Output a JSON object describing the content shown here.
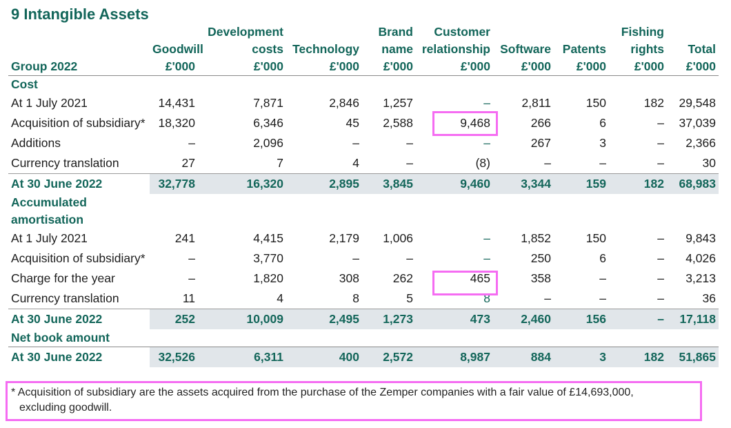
{
  "title": "9 Intangible Assets",
  "header": {
    "group": "Group 2022",
    "columns": [
      {
        "line1": "",
        "line2": "",
        "name": "Goodwill",
        "unit": "£'000"
      },
      {
        "line1": "Development",
        "line2": "",
        "name": "costs",
        "unit": "£'000"
      },
      {
        "line1": "",
        "line2": "",
        "name": "Technology",
        "unit": "£'000"
      },
      {
        "line1": "Brand",
        "line2": "",
        "name": "name",
        "unit": "£'000"
      },
      {
        "line1": "Customer",
        "line2": "",
        "name": "relationship",
        "unit": "£'000"
      },
      {
        "line1": "",
        "line2": "",
        "name": "Software",
        "unit": "£'000"
      },
      {
        "line1": "",
        "line2": "",
        "name": "Patents",
        "unit": "£'000"
      },
      {
        "line1": "Fishing",
        "line2": "",
        "name": "rights",
        "unit": "£'000"
      },
      {
        "line1": "",
        "line2": "",
        "name": "Total",
        "unit": "£'000"
      }
    ]
  },
  "sections": {
    "cost": "Cost",
    "amort_line1": "Accumulated",
    "amort_line2": "amortisation",
    "nba": "Net book amount"
  },
  "cost_rows": [
    {
      "label": "At 1 July 2021",
      "values": [
        "14,431",
        "7,871",
        "2,846",
        "1,257",
        "–",
        "2,811",
        "150",
        "182",
        "29,548"
      ]
    },
    {
      "label": "Acquisition of subsidiary*",
      "values": [
        "18,320",
        "6,346",
        "45",
        "2,588",
        "9,468",
        "266",
        "6",
        "–",
        "37,039"
      ]
    },
    {
      "label": "Additions",
      "values": [
        "–",
        "2,096",
        "–",
        "–",
        "–",
        "267",
        "3",
        "–",
        "2,366"
      ]
    },
    {
      "label": "Currency translation",
      "values": [
        "27",
        "7",
        "4",
        "–",
        "(8)",
        "–",
        "–",
        "–",
        "30"
      ]
    }
  ],
  "cost_total": {
    "label": "At 30 June 2022",
    "values": [
      "32,778",
      "16,320",
      "2,895",
      "3,845",
      "9,460",
      "3,344",
      "159",
      "182",
      "68,983"
    ]
  },
  "amort_rows": [
    {
      "label": "At 1 July 2021",
      "values": [
        "241",
        "4,415",
        "2,179",
        "1,006",
        "–",
        "1,852",
        "150",
        "–",
        "9,843"
      ]
    },
    {
      "label": "Acquisition of subsidiary*",
      "values": [
        "–",
        "3,770",
        "–",
        "–",
        "–",
        "250",
        "6",
        "–",
        "4,026"
      ]
    },
    {
      "label": "Charge for the year",
      "values": [
        "–",
        "1,820",
        "308",
        "262",
        "465",
        "358",
        "–",
        "–",
        "3,213"
      ]
    },
    {
      "label": "Currency translation",
      "values": [
        "11",
        "4",
        "8",
        "5",
        "8",
        "–",
        "–",
        "–",
        "36"
      ]
    }
  ],
  "amort_total": {
    "label": "At 30 June 2022",
    "values": [
      "252",
      "10,009",
      "2,495",
      "1,273",
      "473",
      "2,460",
      "156",
      "–",
      "17,118"
    ]
  },
  "nba_total": {
    "label": "At 30 June 2022",
    "values": [
      "32,526",
      "6,311",
      "400",
      "2,572",
      "8,987",
      "884",
      "3",
      "182",
      "51,865"
    ]
  },
  "footnote_line1": "* Acquisition of subsidiary are the assets acquired from the purchase of the Zemper companies with a fair value of £14,693,000,",
  "footnote_line2": "excluding goodwill.",
  "colors": {
    "teal": "#13665a",
    "highlight": "#f56cf2",
    "total_shade": "#e1e6ea"
  }
}
